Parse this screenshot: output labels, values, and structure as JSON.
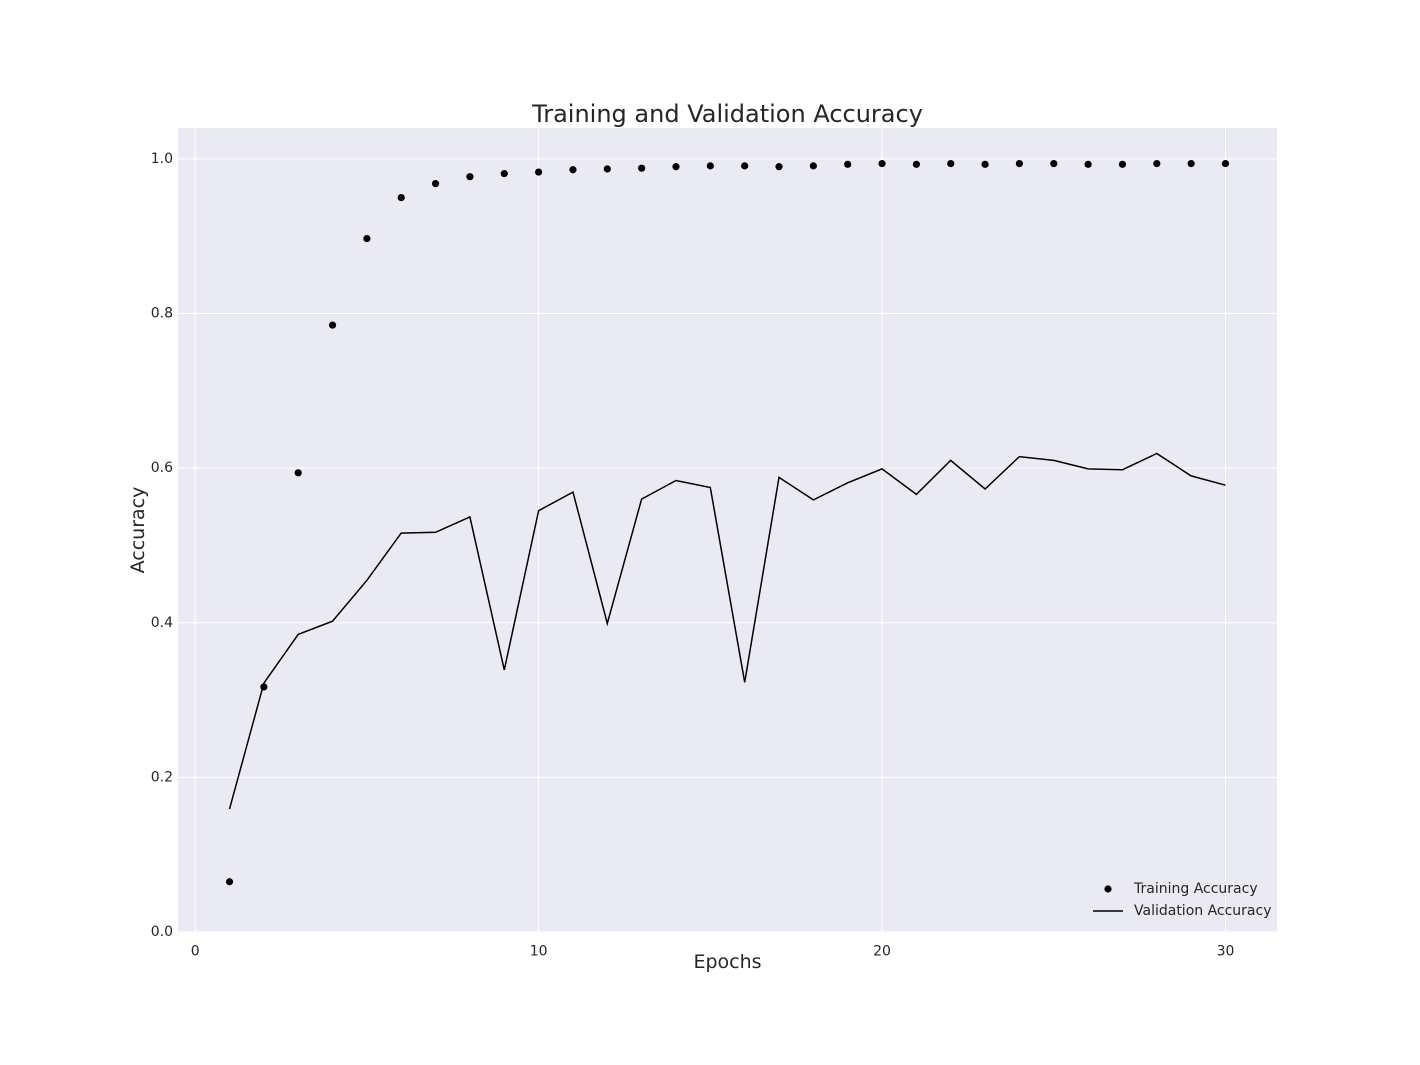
{
  "chart_data": {
    "type": "line",
    "title": "Training and Validation Accuracy",
    "xlabel": "Epochs",
    "ylabel": "Accuracy",
    "xlim": [
      -0.5,
      31.5
    ],
    "ylim": [
      0.0,
      1.04
    ],
    "xticks": [
      0,
      10,
      20,
      30
    ],
    "yticks": [
      0.0,
      0.2,
      0.4,
      0.6,
      0.8,
      1.0
    ],
    "xtick_labels": [
      "0",
      "10",
      "20",
      "30"
    ],
    "ytick_labels": [
      "0.0",
      "0.2",
      "0.4",
      "0.6",
      "0.8",
      "1.0"
    ],
    "grid": true,
    "legend_position": "lower-right",
    "x": [
      1,
      2,
      3,
      4,
      5,
      6,
      7,
      8,
      9,
      10,
      11,
      12,
      13,
      14,
      15,
      16,
      17,
      18,
      19,
      20,
      21,
      22,
      23,
      24,
      25,
      26,
      27,
      28,
      29,
      30
    ],
    "series": [
      {
        "name": "Training Accuracy",
        "style": "markers",
        "color": "#000000",
        "values": [
          0.065,
          0.317,
          0.594,
          0.785,
          0.897,
          0.95,
          0.968,
          0.977,
          0.981,
          0.983,
          0.986,
          0.987,
          0.988,
          0.99,
          0.991,
          0.991,
          0.99,
          0.991,
          0.993,
          0.994,
          0.993,
          0.994,
          0.993,
          0.994,
          0.994,
          0.993,
          0.993,
          0.994,
          0.994,
          0.994
        ]
      },
      {
        "name": "Validation Accuracy",
        "style": "line",
        "color": "#000000",
        "values": [
          0.159,
          0.322,
          0.385,
          0.402,
          0.455,
          0.516,
          0.517,
          0.537,
          0.339,
          0.545,
          0.569,
          0.399,
          0.56,
          0.584,
          0.575,
          0.323,
          0.588,
          0.559,
          0.581,
          0.599,
          0.566,
          0.61,
          0.573,
          0.615,
          0.61,
          0.599,
          0.598,
          0.619,
          0.59,
          0.578
        ]
      }
    ],
    "colors": {
      "plot_background": "#eaeaf2",
      "grid": "#ffffff",
      "text": "#262626"
    }
  }
}
